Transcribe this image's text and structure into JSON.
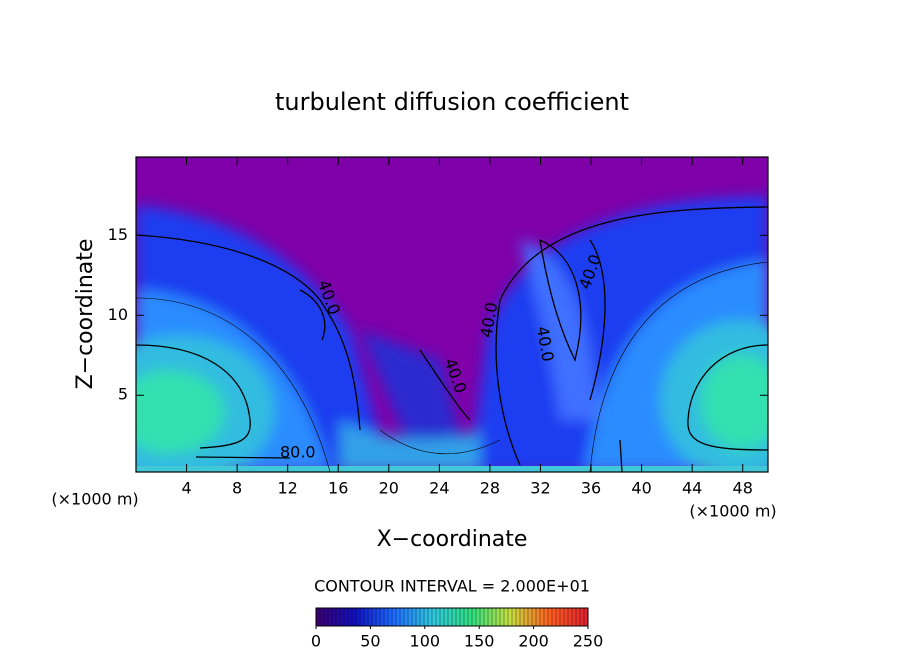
{
  "chart_data": {
    "type": "contour",
    "title": "turbulent diffusion coefficient",
    "xlabel": "X−coordinate",
    "ylabel": "Z−coordinate",
    "xunit": "(×1000 m)",
    "yunit": "(×1000 m)",
    "xlim": [
      0,
      50
    ],
    "ylim": [
      0.2,
      19.9
    ],
    "xticks": [
      4,
      8,
      12,
      16,
      20,
      24,
      28,
      32,
      36,
      40,
      44,
      48
    ],
    "yticks": [
      5,
      10,
      15
    ],
    "contour_labels": [
      {
        "x": 15.2,
        "y": 11.1,
        "text": "40.0"
      },
      {
        "x": 28.0,
        "y": 9.7,
        "text": "40.0"
      },
      {
        "x": 32.3,
        "y": 8.2,
        "text": "40.0"
      },
      {
        "x": 25.2,
        "y": 6.2,
        "text": "40.0"
      },
      {
        "x": 36.0,
        "y": 12.7,
        "text": "40.0"
      },
      {
        "x": 12.8,
        "y": 1.4,
        "text": "80.0"
      }
    ],
    "contour_interval_label": "CONTOUR INTERVAL = 2.000E+01",
    "colorbar": {
      "lim": [
        0,
        250
      ],
      "ticks": [
        0,
        50,
        100,
        150,
        200,
        250
      ],
      "colors": [
        "#3c0070",
        "#1010c0",
        "#1e6cff",
        "#30c8e0",
        "#30e080",
        "#c8e040",
        "#ff6020",
        "#e02030"
      ]
    }
  }
}
